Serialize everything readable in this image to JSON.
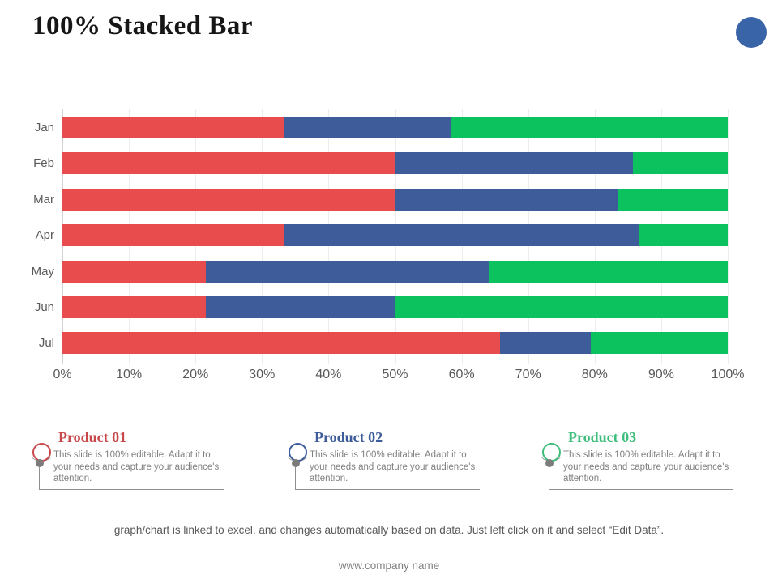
{
  "slide": {
    "title": "100% Stacked Bar",
    "footer_note": "graph/chart is linked to excel, and changes automatically based on data. Just left click on it and select “Edit Data”.",
    "company": "www.company name",
    "accent_circle_color": "#3A64A8"
  },
  "chart_data": {
    "type": "bar",
    "orientation": "horizontal",
    "stacked": "100%",
    "categories": [
      "Jan",
      "Feb",
      "Mar",
      "Apr",
      "May",
      "Jun",
      "Jul"
    ],
    "series": [
      {
        "name": "Product 01",
        "color": "#E84C4C",
        "values": [
          33.4,
          50.0,
          50.0,
          33.4,
          21.5,
          21.5,
          65.8
        ]
      },
      {
        "name": "Product 02",
        "color": "#3F5C9A",
        "values": [
          25.0,
          35.7,
          33.4,
          53.2,
          42.7,
          28.5,
          13.6
        ]
      },
      {
        "name": "Product 03",
        "color": "#0CC25E",
        "values": [
          41.6,
          14.3,
          16.6,
          13.4,
          35.8,
          50.0,
          20.6
        ]
      }
    ],
    "x_ticks": [
      "0%",
      "10%",
      "20%",
      "30%",
      "40%",
      "50%",
      "60%",
      "70%",
      "80%",
      "90%",
      "100%"
    ],
    "xlim": [
      0,
      100
    ],
    "grid": "vertical",
    "legend_position": "none"
  },
  "legend": {
    "items": [
      {
        "title": "Product 01",
        "color": "#C8494C",
        "body": "This slide is 100% editable. Adapt it to your needs and capture your audience's attention."
      },
      {
        "title": "Product 02",
        "color": "#3D5C99",
        "body": "This slide is 100% editable. Adapt it to your needs and capture your audience's attention."
      },
      {
        "title": "Product 03",
        "color": "#3EBD7C",
        "body": "This slide is 100% editable. Adapt it to your needs and capture your audience's attention."
      }
    ]
  }
}
